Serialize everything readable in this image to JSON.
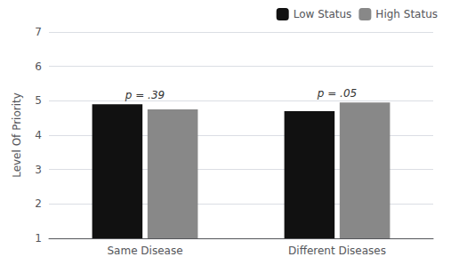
{
  "chart_data": {
    "type": "bar",
    "categories": [
      "Same Disease",
      "Different Diseases"
    ],
    "series": [
      {
        "name": "Low Status",
        "color": "#111111",
        "values": [
          4.9,
          4.7
        ]
      },
      {
        "name": "High Status",
        "color": "#888888",
        "values": [
          4.75,
          4.95
        ]
      }
    ],
    "ylabel": "Level Of Priority",
    "ylim": [
      1,
      7
    ],
    "yticks": [
      1,
      2,
      3,
      4,
      5,
      6,
      7
    ],
    "annotations": [
      "p = .39",
      "p = .05"
    ],
    "grid": true,
    "legend": "upper right"
  }
}
